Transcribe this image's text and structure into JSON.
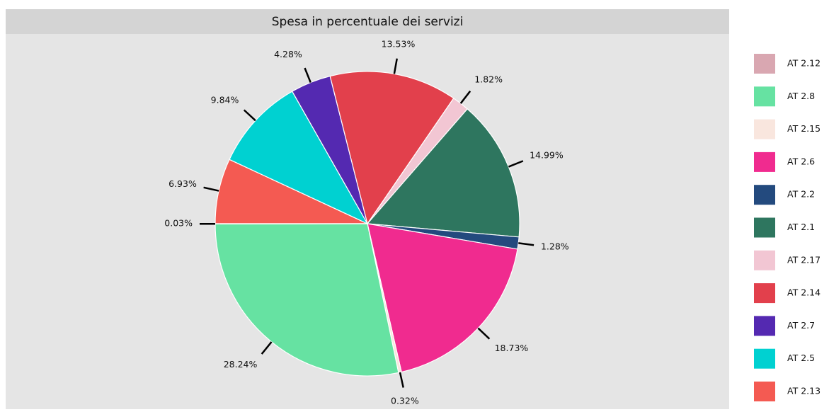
{
  "chart_data": {
    "type": "pie",
    "title": "Spesa in percentuale dei servizi",
    "categories": [
      "AT 2.12",
      "AT 2.8",
      "AT 2.15",
      "AT 2.6",
      "AT 2.2",
      "AT 2.1",
      "AT 2.17",
      "AT 2.14",
      "AT 2.7",
      "AT 2.5",
      "AT 2.13"
    ],
    "values": [
      0.03,
      28.24,
      0.32,
      18.73,
      1.28,
      14.99,
      1.82,
      13.53,
      4.28,
      9.84,
      6.93
    ],
    "value_labels": [
      "0.03%",
      "28.24%",
      "0.32%",
      "18.73%",
      "1.28%",
      "14.99%",
      "1.82%",
      "13.53%",
      "4.28%",
      "9.84%",
      "6.93%"
    ],
    "colors": [
      "#d9a7b1",
      "#66e2a2",
      "#f9e6de",
      "#f02b8f",
      "#234a7e",
      "#2e765f",
      "#f2c6d3",
      "#e2404c",
      "#5429b1",
      "#00d1d1",
      "#f45a52"
    ],
    "legend": "right"
  }
}
